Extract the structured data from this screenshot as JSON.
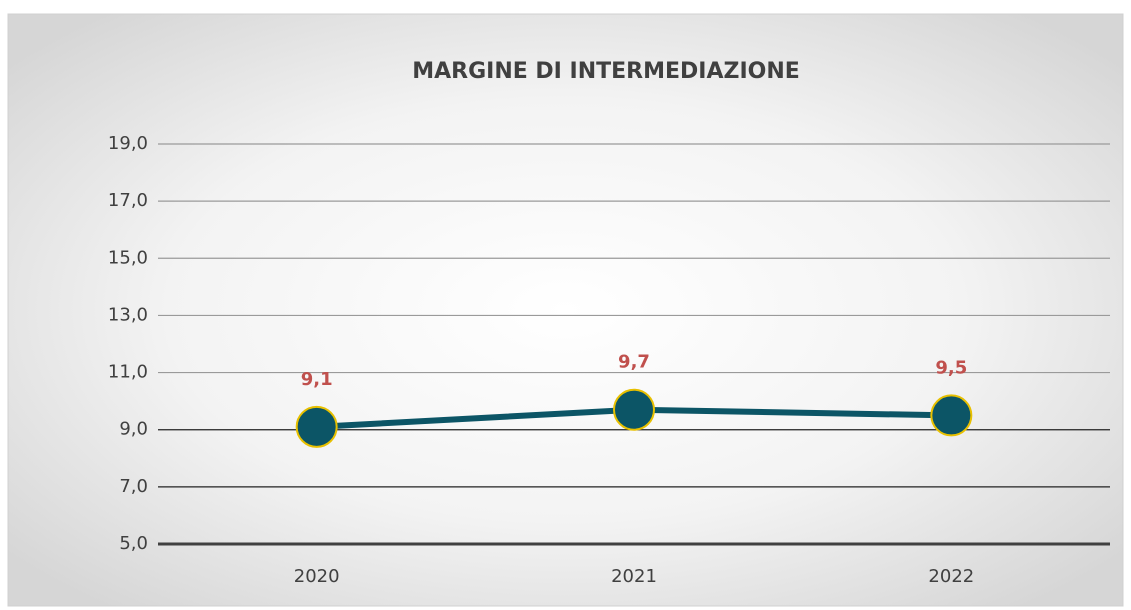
{
  "chart_data": {
    "type": "line",
    "title": "MARGINE DI INTERMEDIAZIONE",
    "categories": [
      "2020",
      "2021",
      "2022"
    ],
    "series": [
      {
        "name": "Margine di intermediazione",
        "color": "#0c5566",
        "marker_edge": "#e8c000",
        "values": [
          9.1,
          9.7,
          9.5
        ],
        "value_labels": [
          "9,1",
          "9,7",
          "9,5"
        ],
        "label_color": "#c0504d"
      }
    ],
    "ylim": [
      5,
      19
    ],
    "yticks": [
      {
        "value": 5,
        "label": "5,0"
      },
      {
        "value": 7,
        "label": "7,0"
      },
      {
        "value": 9,
        "label": "9,0"
      },
      {
        "value": 11,
        "label": "11,0"
      },
      {
        "value": 13,
        "label": "13,0"
      },
      {
        "value": 15,
        "label": "15,0"
      },
      {
        "value": 17,
        "label": "17,0"
      },
      {
        "value": 19,
        "label": "19,0"
      }
    ],
    "grid": true
  }
}
